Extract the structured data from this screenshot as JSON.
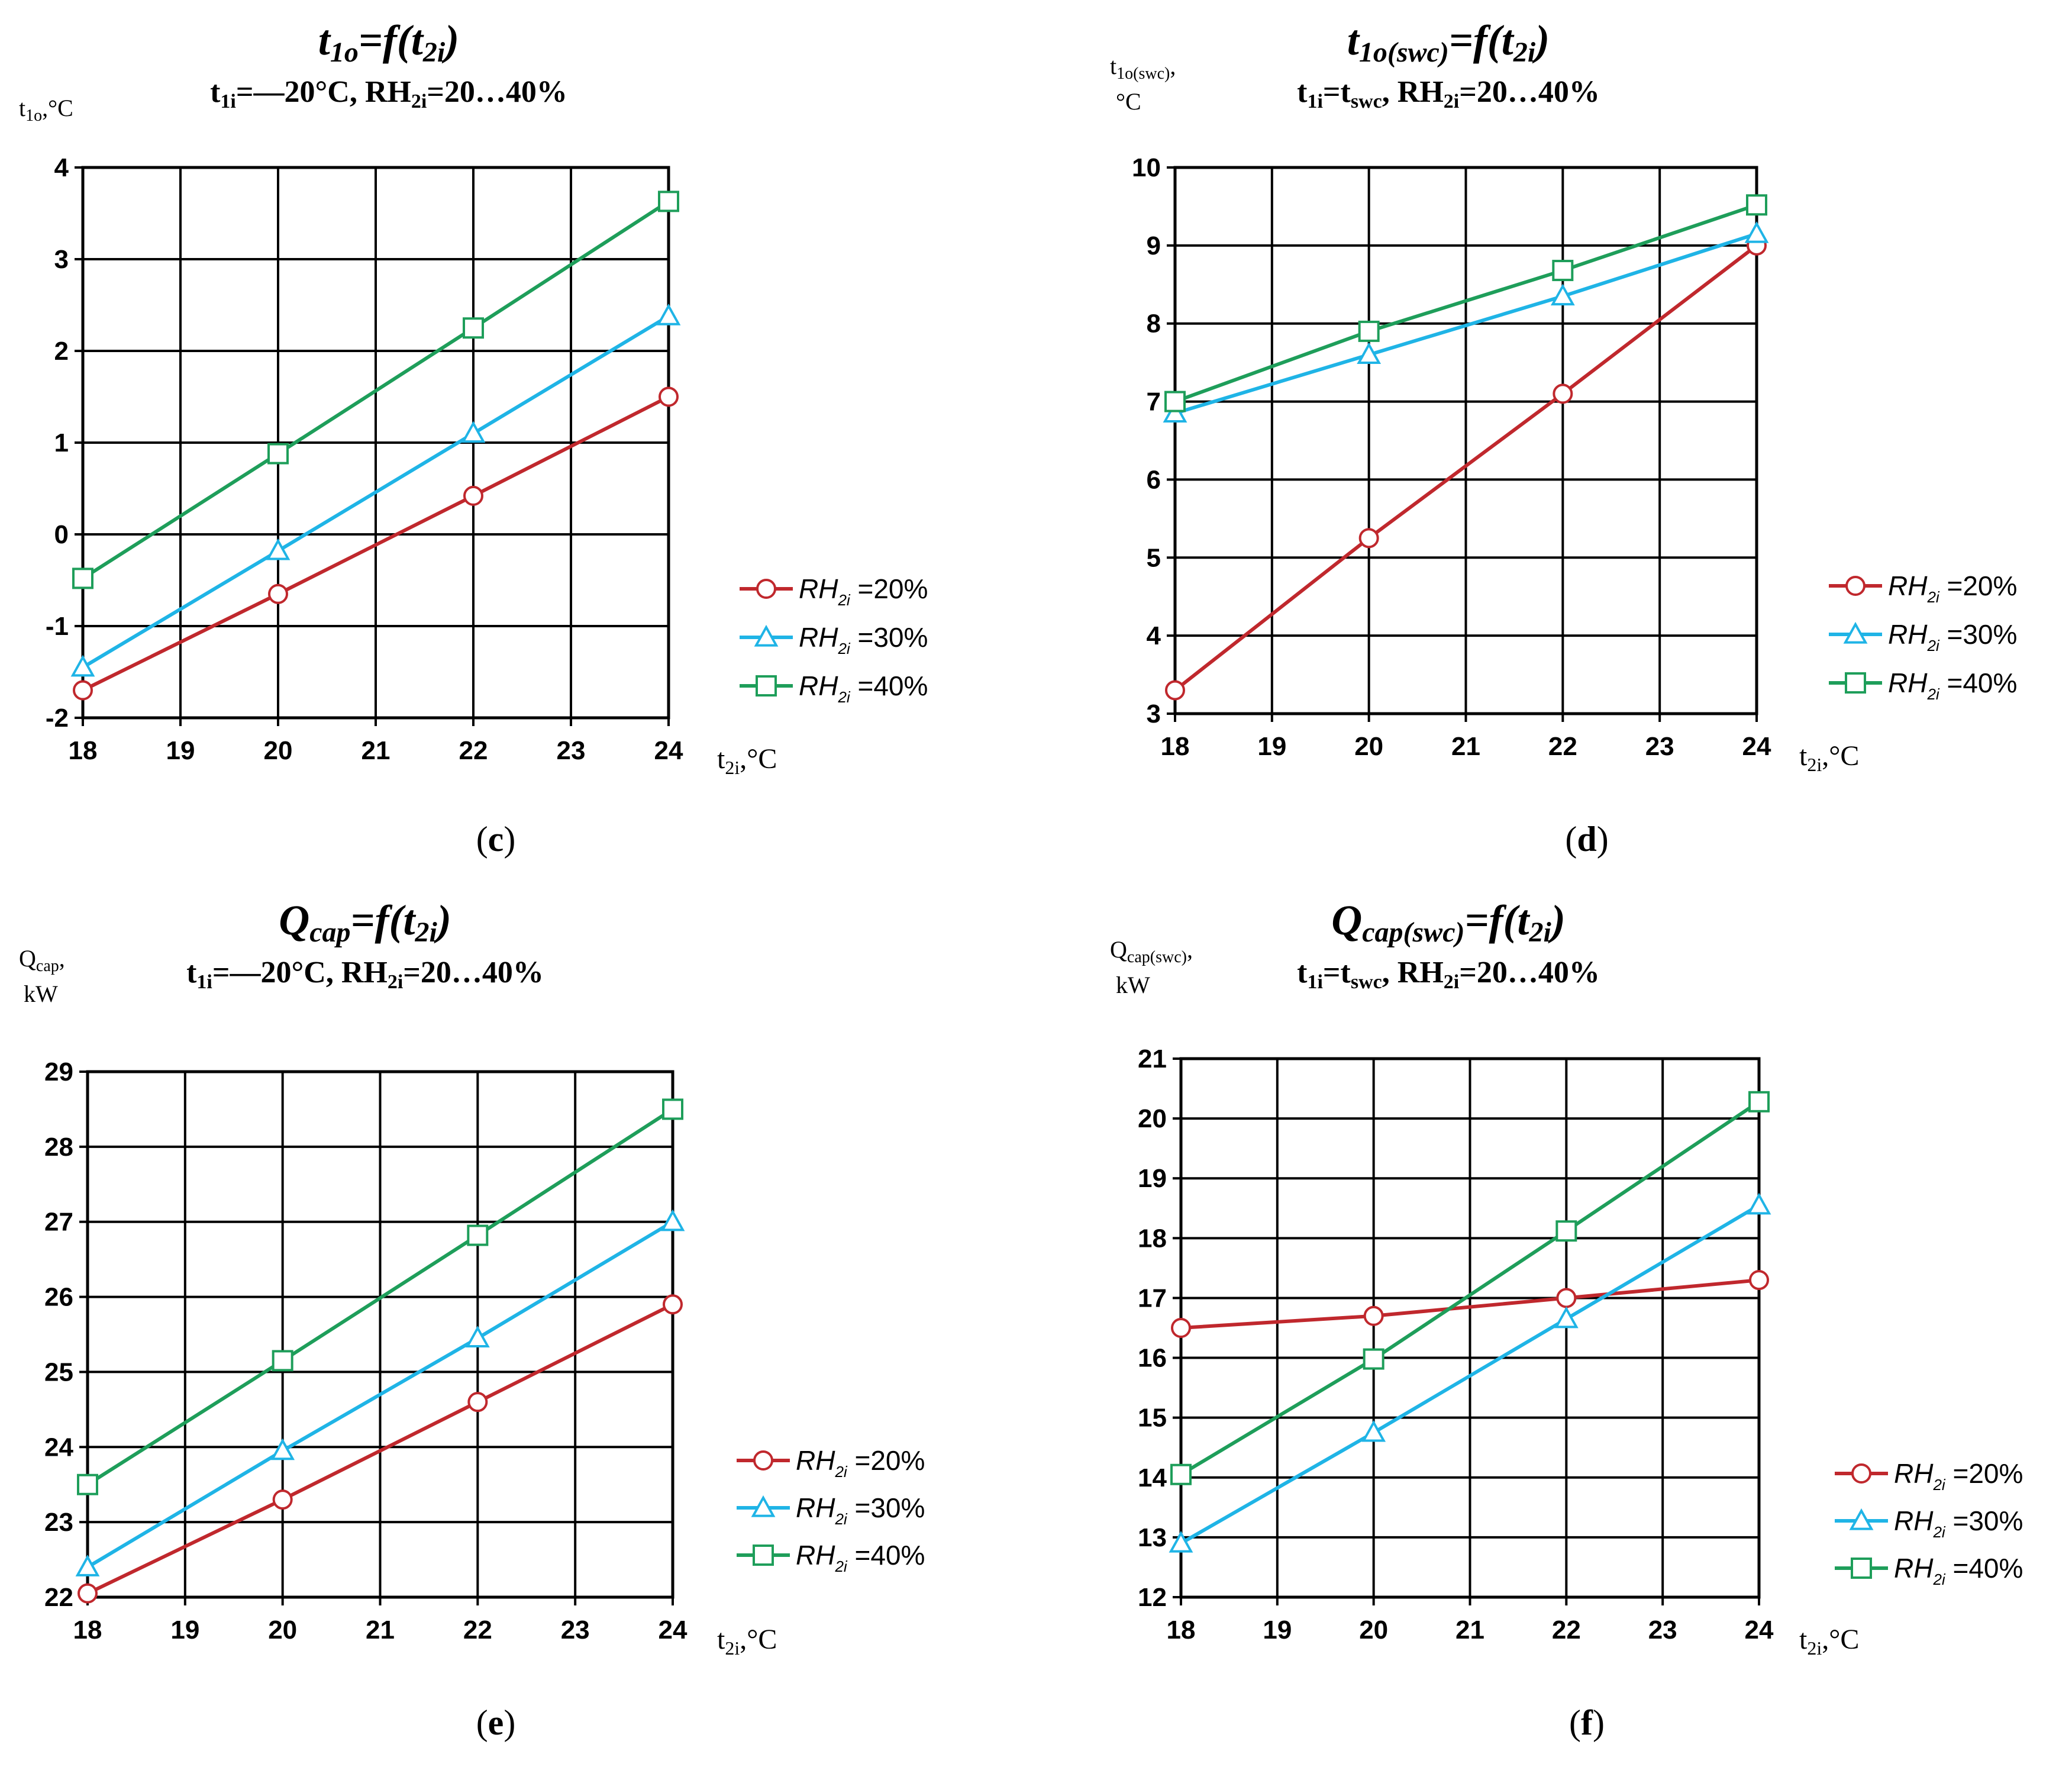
{
  "chart_data": [
    {
      "type": "line",
      "panel_label": "c",
      "title": "t1o=f(t2i)",
      "subtitle": "t1i=—20°C, RH2i=20…40%",
      "ylabel": "t1o,°C",
      "xlabel": "t2i,°C",
      "x_ticks": [
        18,
        19,
        20,
        21,
        22,
        23,
        24
      ],
      "y_ticks": [
        -2,
        -1,
        0,
        1,
        2,
        3,
        4
      ],
      "xlim": [
        18,
        24
      ],
      "ylim": [
        -2,
        4
      ],
      "grid": true,
      "x": [
        18,
        20,
        22,
        24
      ],
      "series": [
        {
          "name": "RH2i =20%",
          "color": "#C0282D",
          "marker": "circle",
          "values": [
            -1.7,
            -0.65,
            0.42,
            1.5
          ]
        },
        {
          "name": "RH2i =30%",
          "color": "#1FB4E6",
          "marker": "triangle",
          "values": [
            -1.45,
            -0.18,
            1.1,
            2.38
          ]
        },
        {
          "name": "RH2i =40%",
          "color": "#1E9E5A",
          "marker": "square",
          "values": [
            -0.48,
            0.88,
            2.25,
            3.63
          ]
        }
      ]
    },
    {
      "type": "line",
      "panel_label": "d",
      "title": "t1o(swc)=f(t2i)",
      "subtitle": "t1i=tswc, RH2i=20…40%",
      "ylabel": "t1o(swc),°C",
      "xlabel": "t2i,°C",
      "x_ticks": [
        18,
        19,
        20,
        21,
        22,
        23,
        24
      ],
      "y_ticks": [
        3,
        4,
        5,
        6,
        7,
        8,
        9,
        10
      ],
      "xlim": [
        18,
        24
      ],
      "ylim": [
        3,
        10
      ],
      "grid": true,
      "x": [
        18,
        20,
        22,
        24
      ],
      "series": [
        {
          "name": "RH2i =20%",
          "color": "#C0282D",
          "marker": "circle",
          "values": [
            3.3,
            5.25,
            7.1,
            9.0
          ]
        },
        {
          "name": "RH2i =30%",
          "color": "#1FB4E6",
          "marker": "triangle",
          "values": [
            6.85,
            7.6,
            8.35,
            9.15
          ]
        },
        {
          "name": "RH2i =40%",
          "color": "#1E9E5A",
          "marker": "square",
          "values": [
            7.0,
            7.9,
            8.68,
            9.52
          ]
        }
      ]
    },
    {
      "type": "line",
      "panel_label": "e",
      "title": "Qcap=f(t2i)",
      "subtitle": "t1i=—20°C, RH2i=20…40%",
      "ylabel": "Qcap, kW",
      "xlabel": "t2i,°C",
      "x_ticks": [
        18,
        19,
        20,
        21,
        22,
        23,
        24
      ],
      "y_ticks": [
        22,
        23,
        24,
        25,
        26,
        27,
        28,
        29
      ],
      "xlim": [
        18,
        24
      ],
      "ylim": [
        22,
        29
      ],
      "grid": true,
      "x": [
        18,
        20,
        22,
        24
      ],
      "series": [
        {
          "name": "RH2i =20%",
          "color": "#C0282D",
          "marker": "circle",
          "values": [
            22.05,
            23.3,
            24.6,
            25.9
          ]
        },
        {
          "name": "RH2i =30%",
          "color": "#1FB4E6",
          "marker": "triangle",
          "values": [
            22.4,
            23.95,
            25.45,
            27.0
          ]
        },
        {
          "name": "RH2i =40%",
          "color": "#1E9E5A",
          "marker": "square",
          "values": [
            23.5,
            25.15,
            26.82,
            28.5
          ]
        }
      ]
    },
    {
      "type": "line",
      "panel_label": "f",
      "title": "Qcap(swc)=f(t2i)",
      "subtitle": "t1i=tswc, RH2i=20…40%",
      "ylabel": "Qcap(swc), kW",
      "xlabel": "t2i,°C",
      "x_ticks": [
        18,
        19,
        20,
        21,
        22,
        23,
        24
      ],
      "y_ticks": [
        12,
        13,
        14,
        15,
        16,
        17,
        18,
        19,
        20,
        21
      ],
      "xlim": [
        18,
        24
      ],
      "ylim": [
        12,
        21
      ],
      "grid": true,
      "x": [
        18,
        20,
        22,
        24
      ],
      "series": [
        {
          "name": "RH2i =20%",
          "color": "#C0282D",
          "marker": "circle",
          "values": [
            16.5,
            16.7,
            17.0,
            17.3
          ]
        },
        {
          "name": "RH2i =30%",
          "color": "#1FB4E6",
          "marker": "triangle",
          "values": [
            12.9,
            14.75,
            16.65,
            18.55
          ]
        },
        {
          "name": "RH2i =40%",
          "color": "#1E9E5A",
          "marker": "square",
          "values": [
            14.05,
            15.98,
            18.12,
            20.28
          ]
        }
      ]
    }
  ]
}
